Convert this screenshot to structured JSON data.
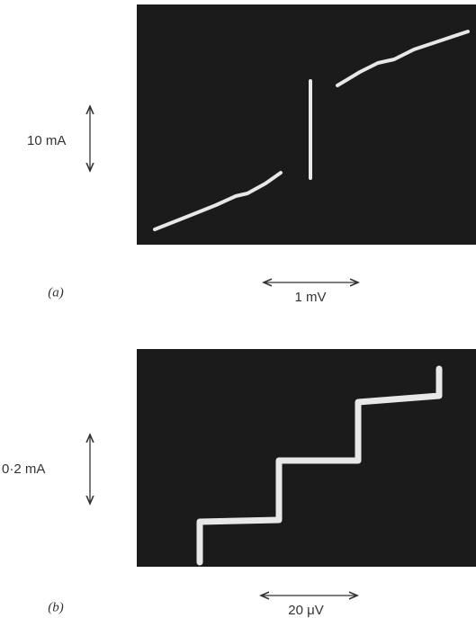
{
  "panels": [
    {
      "label": "(a)",
      "current_scale": "10 mA",
      "voltage_scale": "1 mV"
    },
    {
      "label": "(b)",
      "current_scale": "0·2 mA",
      "voltage_scale": "20 μV"
    }
  ]
}
